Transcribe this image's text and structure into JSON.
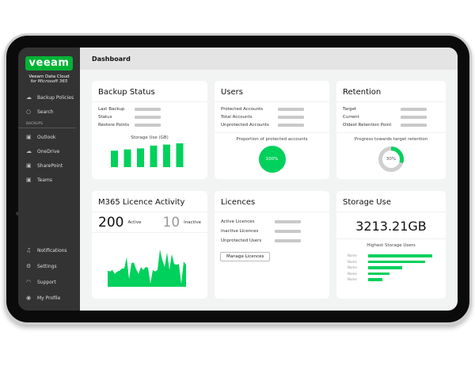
{
  "sidebar": {
    "logo": "veeam",
    "brand_line1": "Veeam Data Cloud",
    "brand_line2": "for Microsoft 365",
    "top_items": [
      {
        "label": "Backup Policies",
        "icon": "cloud-upload-icon"
      },
      {
        "label": "Search",
        "icon": "search-icon"
      }
    ],
    "section_label": "BACKUPS",
    "backup_items": [
      {
        "label": "Outlook",
        "icon": "outlook-icon"
      },
      {
        "label": "OneDrive",
        "icon": "onedrive-icon"
      },
      {
        "label": "SharePoint",
        "icon": "sharepoint-icon"
      },
      {
        "label": "Teams",
        "icon": "teams-icon"
      }
    ],
    "bottom_items": [
      {
        "label": "Notifications",
        "icon": "bell-icon"
      },
      {
        "label": "Settings",
        "icon": "gear-icon"
      },
      {
        "label": "Support",
        "icon": "headset-icon"
      },
      {
        "label": "My Profile",
        "icon": "user-icon"
      }
    ]
  },
  "header": {
    "title": "Dashboard"
  },
  "colors": {
    "accent": "#00d15c",
    "sidebar": "#333333",
    "placeholder": "#c9c9c9"
  },
  "backup_status": {
    "title": "Backup Status",
    "rows": [
      "Last Backup",
      "Status",
      "Restore Points"
    ],
    "chart_caption": "Storage Use (GB)",
    "bar_values": [
      65,
      70,
      74,
      85,
      89,
      94
    ]
  },
  "users": {
    "title": "Users",
    "rows": [
      "Protected Accounts",
      "Total Accounts",
      "Unprotected Accounts"
    ],
    "caption": "Proportion of protected accounts",
    "percent_label": "100%",
    "percent": 100
  },
  "retention": {
    "title": "Retention",
    "rows": [
      "Target",
      "Current",
      "Oldest Retention Point"
    ],
    "caption": "Progress towards target retention",
    "percent_label": "30%",
    "percent": 30
  },
  "licence_activity": {
    "title": "M365 Licence Activity",
    "active_count": "200",
    "active_label": "Active",
    "inactive_count": "10",
    "inactive_label": "Inactive",
    "series": [
      21,
      20,
      22,
      17,
      20,
      21,
      24,
      24,
      39,
      10,
      31,
      32,
      23,
      17,
      26,
      22,
      26,
      25,
      4,
      22,
      20,
      22,
      49,
      35,
      26,
      45,
      22,
      43,
      30,
      29,
      30,
      4,
      33,
      29
    ]
  },
  "licences": {
    "title": "Licences",
    "rows": [
      "Active Licences",
      "Inactive Licences",
      "Unprotected Users"
    ],
    "button": "Manage Licences"
  },
  "storage": {
    "title": "Storage Use",
    "total": "3213.21GB",
    "caption": "Highest Storage Users",
    "users": [
      {
        "name": "Name",
        "value": 100
      },
      {
        "name": "Name",
        "value": 89
      },
      {
        "name": "Name",
        "value": 53
      },
      {
        "name": "Name",
        "value": 33
      },
      {
        "name": "Name",
        "value": 22
      }
    ]
  }
}
